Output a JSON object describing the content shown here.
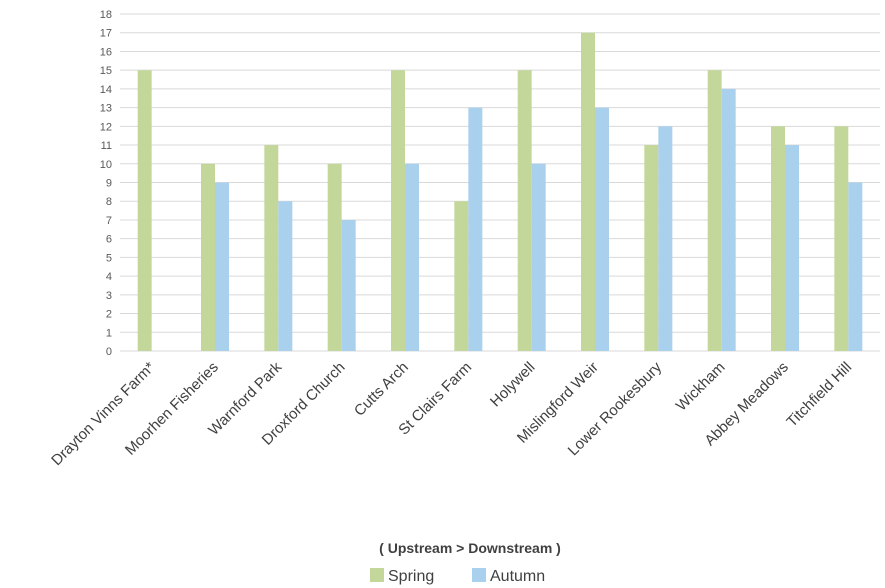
{
  "chart_data": {
    "type": "bar",
    "title": "",
    "xlabel": "( Upstream > Downstream )",
    "ylabel": "",
    "ylim": [
      0,
      18
    ],
    "yticks": [
      0,
      1,
      2,
      3,
      4,
      5,
      6,
      7,
      8,
      9,
      10,
      11,
      12,
      13,
      14,
      15,
      16,
      17,
      18
    ],
    "grid": true,
    "legend_position": "bottom",
    "categories": [
      "Drayton Vinns Farm*",
      "Moorhen Fisheries",
      "Warnford Park",
      "Droxford Church",
      "Cutts Arch",
      "St Clairs Farm",
      "Holywell",
      "Mislingford Weir",
      "Lower Rookesbury",
      "Wickham",
      "Abbey Meadows",
      "Titchfield Hill"
    ],
    "series": [
      {
        "name": "Spring",
        "color": "#c4d79b",
        "values": [
          15,
          10,
          11,
          10,
          15,
          8,
          15,
          17,
          11,
          15,
          12,
          12
        ]
      },
      {
        "name": "Autumn",
        "color": "#a9d0ec",
        "values": [
          null,
          9,
          8,
          7,
          10,
          13,
          10,
          13,
          12,
          14,
          11,
          9
        ]
      }
    ]
  }
}
